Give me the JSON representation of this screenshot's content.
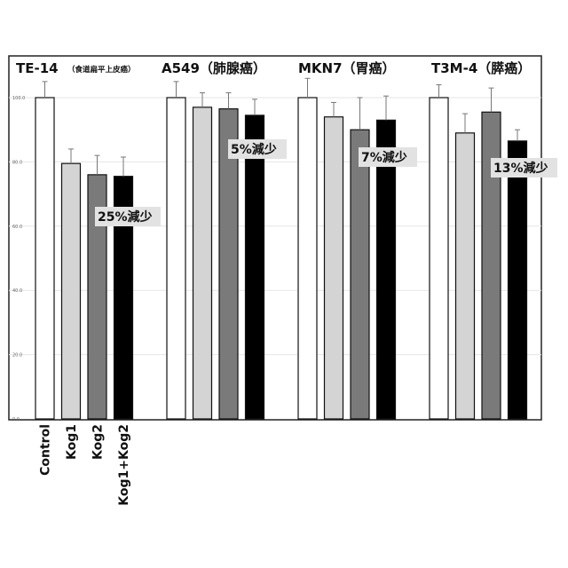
{
  "chart_data": {
    "type": "bar",
    "categories": [
      "Control",
      "Kog1",
      "Kog2",
      "Kog1+Kog2"
    ],
    "ylim": [
      0,
      100
    ],
    "yticks": [
      "0.0",
      "20.0",
      "40.0",
      "60.0",
      "80.0",
      "100.0"
    ],
    "grid": true,
    "colors": {
      "Control": "#ffffff",
      "Kog1": "#d4d4d4",
      "Kog2": "#7a7a7a",
      "Kog1+Kog2": "#000000"
    },
    "groups": [
      {
        "title": "TE-14",
        "subtitle": "（食道扁平上皮癌）",
        "values": [
          100,
          79.5,
          76,
          75.5
        ],
        "errors": [
          5,
          4.5,
          6,
          6
        ],
        "note": "25%減少"
      },
      {
        "title": "A549（肺腺癌）",
        "subtitle": "",
        "values": [
          100,
          97,
          96.5,
          94.5
        ],
        "errors": [
          5,
          4.5,
          5,
          5
        ],
        "note": "5%減少"
      },
      {
        "title": "MKN7（胃癌）",
        "subtitle": "",
        "values": [
          100,
          94,
          90,
          93
        ],
        "errors": [
          6,
          4.5,
          10,
          7.5
        ],
        "note": "7%減少"
      },
      {
        "title": "T3M-4（膵癌）",
        "subtitle": "",
        "values": [
          100,
          89,
          95.5,
          86.5
        ],
        "errors": [
          4,
          6,
          7.5,
          3.5
        ],
        "note": "13%減少"
      }
    ]
  }
}
